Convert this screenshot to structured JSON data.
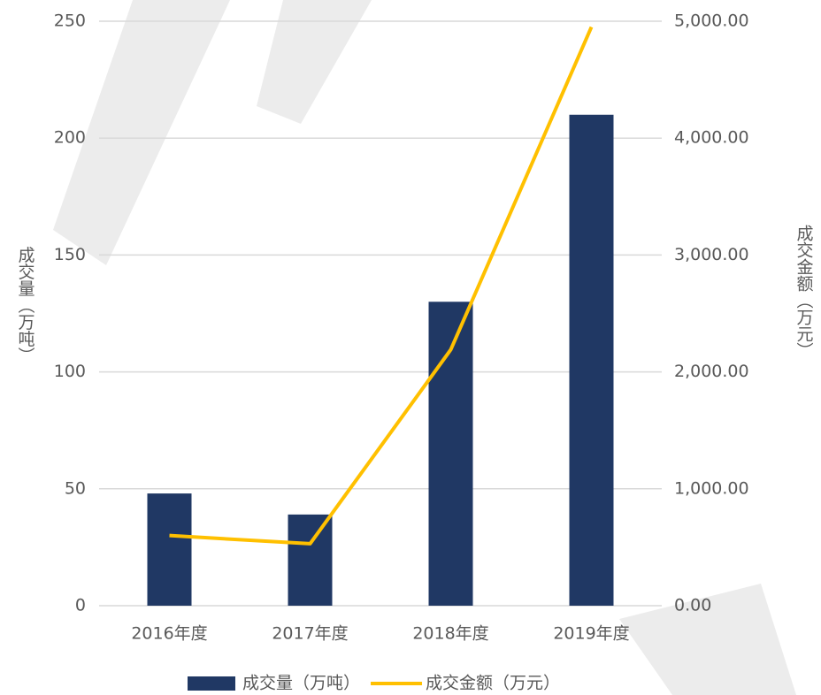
{
  "chart_data": {
    "type": "bar",
    "categories": [
      "2016年度",
      "2017年度",
      "2018年度",
      "2019年度"
    ],
    "series": [
      {
        "name": "成交量（万吨）",
        "color": "#203864",
        "values": [
          48,
          39,
          130,
          210
        ]
      },
      {
        "name": "成交金额（万元）",
        "color": "#ffc000",
        "axis": "y2",
        "values": [
          600,
          530,
          2190,
          4950
        ]
      }
    ],
    "ylabel": "成交量（万吨）",
    "y2label": "成交金额（万元）",
    "ylim": [
      0,
      250
    ],
    "yticks": [
      0,
      50,
      100,
      150,
      200,
      250
    ],
    "y2lim": [
      0,
      5000
    ],
    "y2ticks": [
      {
        "value": 0,
        "label": "0.00"
      },
      {
        "value": 1000,
        "label": "1,000.00"
      },
      {
        "value": 2000,
        "label": "2,000.00"
      },
      {
        "value": 3000,
        "label": "3,000.00"
      },
      {
        "value": 4000,
        "label": "4,000.00"
      },
      {
        "value": 5000,
        "label": "5,000.00"
      }
    ],
    "grid": true,
    "legend": "bottom"
  }
}
